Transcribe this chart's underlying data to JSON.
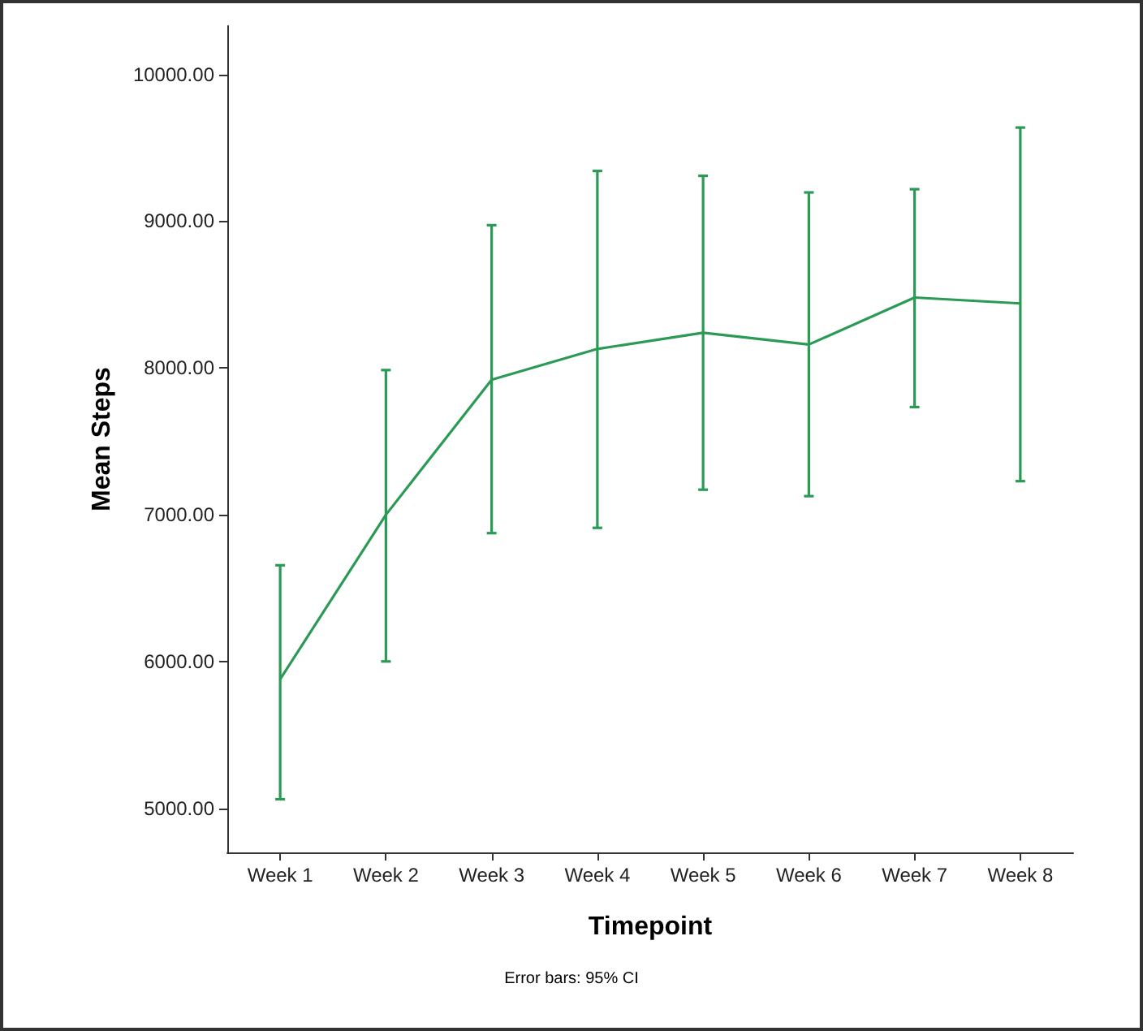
{
  "chart_data": {
    "type": "line",
    "xlabel": "Timepoint",
    "ylabel": "Mean Steps",
    "annotations": [
      "Error bars: 95% CI"
    ],
    "categories": [
      "Week 1",
      "Week 2",
      "Week 3",
      "Week 4",
      "Week 5",
      "Week 6",
      "Week 7",
      "Week 8"
    ],
    "series": [
      {
        "color": "#2a9a55",
        "values": [
          5880,
          7000,
          7920,
          8130,
          8240,
          8160,
          8480,
          8440
        ],
        "errors": [
          [
            5062,
            6656
          ],
          [
            6001,
            7986
          ],
          [
            6875,
            8973
          ],
          [
            6911,
            9342
          ],
          [
            7171,
            9309
          ],
          [
            7127,
            9196
          ],
          [
            7734,
            9218
          ],
          [
            7229,
            9638
          ]
        ]
      }
    ],
    "ylim": [
      4700,
      10330
    ],
    "yticks": [
      {
        "value": 5000,
        "label": "5000.00"
      },
      {
        "value": 6000,
        "label": "6000.00"
      },
      {
        "value": 7000,
        "label": "7000.00"
      },
      {
        "value": 8000,
        "label": "8000.00"
      },
      {
        "value": 9000,
        "label": "9000.00"
      },
      {
        "value": 10000,
        "label": "10000.00"
      }
    ],
    "grid": false,
    "marker": "none",
    "line_style": "solid"
  }
}
